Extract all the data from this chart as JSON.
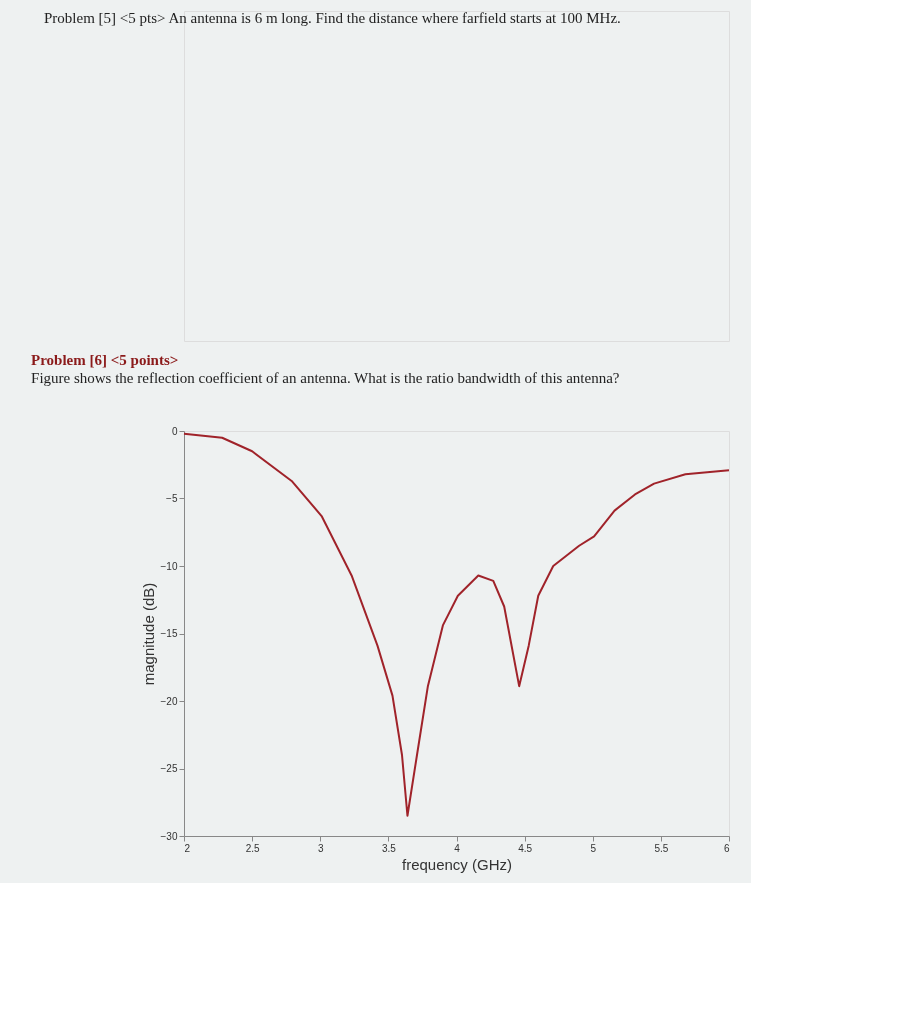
{
  "chart_data": {
    "type": "line",
    "title": "Problem [6] <5 points>",
    "subtitle": "Figure shows the reflection coefficient of an antenna. What is the ratio bandwidth of this antenna?",
    "annotations": [
      "Problem [5] <5 pts> An antenna is 6 m long. Find the distance where farfield starts at 100 MHz."
    ],
    "xlabel": "frequency (GHz)",
    "ylabel": "magnitude (dB)",
    "x": [
      2.0,
      2.28,
      2.5,
      2.79,
      3.01,
      3.23,
      3.42,
      3.53,
      3.6,
      3.64,
      3.71,
      3.79,
      3.9,
      4.01,
      4.16,
      4.27,
      4.35,
      4.46,
      4.53,
      4.6,
      4.71,
      4.9,
      5.01,
      5.16,
      5.31,
      5.45,
      5.68,
      5.9,
      6.0
    ],
    "series": [
      {
        "color": "#a0232a",
        "values": [
          -0.2,
          -0.5,
          -1.5,
          -3.7,
          -6.3,
          -10.7,
          -15.9,
          -19.6,
          -24,
          -28.5,
          -24,
          -18.9,
          -14.4,
          -12.2,
          -10.7,
          -11.1,
          -13,
          -18.9,
          -15.9,
          -12.2,
          -10,
          -8.5,
          -7.8,
          -5.9,
          -4.7,
          -3.9,
          -3.2,
          -3.0,
          -2.9
        ]
      }
    ],
    "xlim": [
      2,
      6
    ],
    "xticks": [
      2,
      2.5,
      3,
      3.5,
      4,
      4.5,
      5,
      5.5,
      6
    ],
    "ylim": [
      -30,
      0
    ],
    "yticks": [
      -30,
      -25,
      -20,
      -15,
      -10,
      -5,
      0
    ],
    "grid": false,
    "legend": false,
    "marker": "none",
    "line_style": "solid"
  }
}
